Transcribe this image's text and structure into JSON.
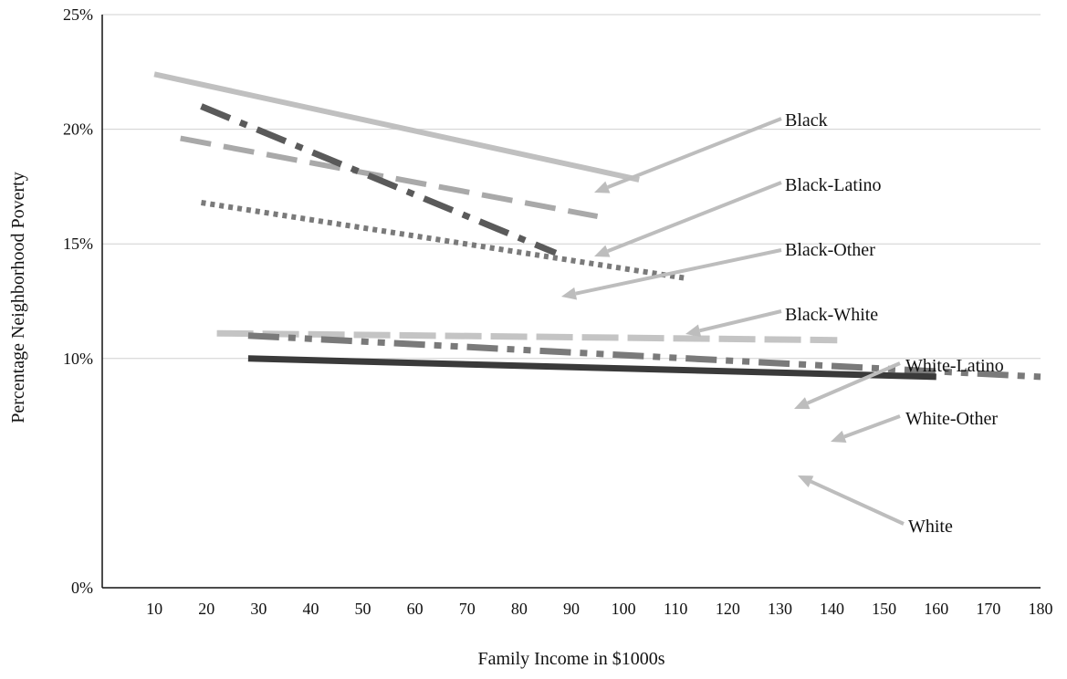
{
  "chart_data": {
    "type": "line",
    "title": "",
    "xlabel": "Family Income in $1000s",
    "ylabel": "Percentage Neighborhood Poverty",
    "xlim": [
      0,
      180
    ],
    "ylim": [
      0,
      25
    ],
    "x_ticks": [
      10,
      20,
      30,
      40,
      50,
      60,
      70,
      80,
      90,
      100,
      110,
      120,
      130,
      140,
      150,
      160,
      170,
      180
    ],
    "y_ticks": [
      0,
      10,
      15,
      20,
      25
    ],
    "y_tick_labels": [
      "0%",
      "10%",
      "15%",
      "20%",
      "25%"
    ],
    "grid": "horizontal",
    "legend": "callout labels with arrows, right side",
    "series": [
      {
        "name": "Black",
        "x": [
          10,
          103
        ],
        "y": [
          22.4,
          17.8
        ],
        "color": "#c0c0c0",
        "style": "solid"
      },
      {
        "name": "Black-Latino",
        "x": [
          15,
          95
        ],
        "y": [
          19.6,
          16.2
        ],
        "color": "#a9a9a9",
        "style": "dashed"
      },
      {
        "name": "Black-Other",
        "x": [
          19,
          87
        ],
        "y": [
          21.0,
          14.6
        ],
        "color": "#5a5a5a",
        "style": "dash-dot"
      },
      {
        "name": "Black-White",
        "x": [
          19,
          112
        ],
        "y": [
          16.8,
          13.5
        ],
        "color": "#7a7a7a",
        "style": "dotted"
      },
      {
        "name": "White-Latino",
        "x": [
          22,
          141
        ],
        "y": [
          11.1,
          10.8
        ],
        "color": "#c4c4c4",
        "style": "dashed"
      },
      {
        "name": "White-Other",
        "x": [
          28,
          180
        ],
        "y": [
          11.0,
          9.2
        ],
        "color": "#7a7a7a",
        "style": "dash-dot-dot"
      },
      {
        "name": "White",
        "x": [
          28,
          160
        ],
        "y": [
          10.0,
          9.2
        ],
        "color": "#3a3a3a",
        "style": "solid"
      }
    ]
  }
}
